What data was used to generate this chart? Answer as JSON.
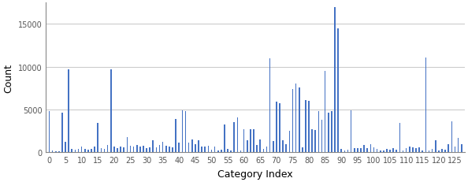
{
  "title": "",
  "xlabel": "Category Index",
  "ylabel": "Count",
  "bar_color": "#4472C4",
  "ylim": [
    0,
    17500
  ],
  "yticks": [
    0,
    5000,
    10000,
    15000
  ],
  "xticks": [
    0,
    5,
    10,
    15,
    20,
    25,
    30,
    35,
    40,
    45,
    50,
    55,
    60,
    65,
    70,
    75,
    80,
    85,
    90,
    95,
    100,
    105,
    110,
    115,
    120,
    125
  ],
  "figsize": [
    5.94,
    2.32
  ],
  "dpi": 100,
  "bar_width": 0.4,
  "values": [
    4800,
    200,
    100,
    100,
    4600,
    1200,
    9700,
    400,
    300,
    400,
    700,
    400,
    300,
    400,
    700,
    3400,
    500,
    400,
    900,
    9700,
    700,
    500,
    700,
    600,
    1800,
    800,
    700,
    900,
    700,
    800,
    500,
    600,
    1400,
    600,
    900,
    1200,
    800,
    700,
    600,
    3900,
    1100,
    4900,
    4800,
    1100,
    1500,
    1000,
    1400,
    700,
    700,
    800,
    300,
    700,
    200,
    300,
    3300,
    400,
    200,
    3500,
    4100,
    200,
    2700,
    1400,
    2700,
    2700,
    900,
    1500,
    400,
    700,
    11000,
    1300,
    5900,
    5700,
    1400,
    1000,
    2500,
    7400,
    8000,
    7600,
    600,
    6100,
    6000,
    2700,
    2600,
    4800,
    3800,
    9500,
    4600,
    4800,
    17000,
    14500,
    400,
    200,
    300,
    4900,
    500,
    500,
    500,
    900,
    500,
    1000,
    600,
    400,
    200,
    200,
    400,
    300,
    500,
    300,
    3400,
    200,
    500,
    700,
    600,
    500,
    600,
    200,
    11100,
    200,
    400,
    1400,
    200,
    400,
    300,
    1000,
    3600,
    700,
    1700,
    1000
  ]
}
